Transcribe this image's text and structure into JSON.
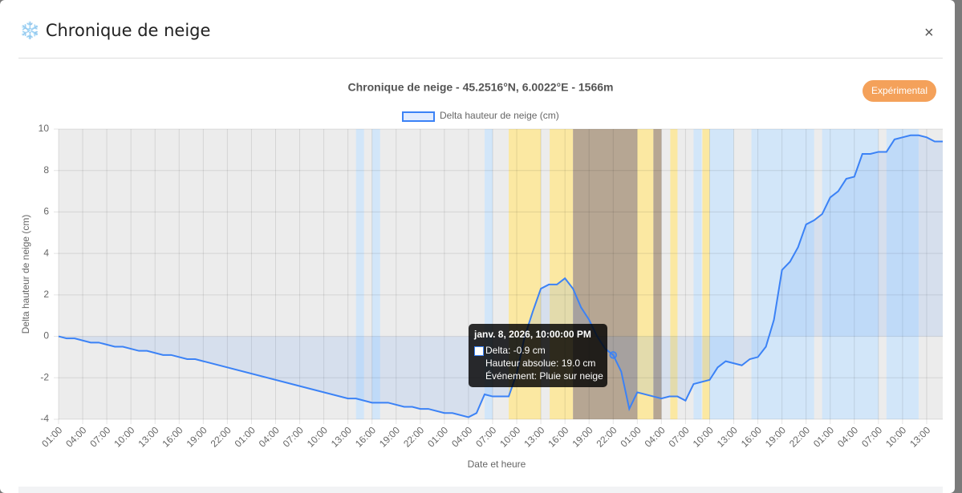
{
  "header": {
    "title": "❄️ Chronique de neige",
    "close": "×"
  },
  "badge": "Expérimental",
  "chart_data": {
    "type": "line",
    "title": "Chronique de neige - 45.2516°N, 6.0022°E - 1566m",
    "x_label": "Date et heure",
    "y_label": "Delta hauteur de neige (cm)",
    "xlim": [
      0,
      110
    ],
    "ylim": [
      -4,
      10
    ],
    "yticks": [
      -4,
      -2,
      0,
      2,
      4,
      6,
      8,
      10
    ],
    "grid": true,
    "xticks": [
      {
        "value": 0,
        "label": "01:00"
      },
      {
        "value": 3,
        "label": "04:00"
      },
      {
        "value": 6,
        "label": "07:00"
      },
      {
        "value": 9,
        "label": "10:00"
      },
      {
        "value": 12,
        "label": "13:00"
      },
      {
        "value": 15,
        "label": "16:00"
      },
      {
        "value": 18,
        "label": "19:00"
      },
      {
        "value": 21,
        "label": "22:00"
      },
      {
        "value": 24,
        "label": "01:00"
      },
      {
        "value": 27,
        "label": "04:00"
      },
      {
        "value": 30,
        "label": "07:00"
      },
      {
        "value": 33,
        "label": "10:00"
      },
      {
        "value": 36,
        "label": "13:00"
      },
      {
        "value": 39,
        "label": "16:00"
      },
      {
        "value": 42,
        "label": "19:00"
      },
      {
        "value": 45,
        "label": "22:00"
      },
      {
        "value": 48,
        "label": "01:00"
      },
      {
        "value": 51,
        "label": "04:00"
      },
      {
        "value": 54,
        "label": "07:00"
      },
      {
        "value": 57,
        "label": "10:00"
      },
      {
        "value": 60,
        "label": "13:00"
      },
      {
        "value": 63,
        "label": "16:00"
      },
      {
        "value": 66,
        "label": "19:00"
      },
      {
        "value": 69,
        "label": "22:00"
      },
      {
        "value": 72,
        "label": "01:00"
      },
      {
        "value": 75,
        "label": "04:00"
      },
      {
        "value": 78,
        "label": "07:00"
      },
      {
        "value": 81,
        "label": "10:00"
      },
      {
        "value": 84,
        "label": "13:00"
      },
      {
        "value": 87,
        "label": "16:00"
      },
      {
        "value": 90,
        "label": "19:00"
      },
      {
        "value": 93,
        "label": "22:00"
      },
      {
        "value": 96,
        "label": "01:00"
      },
      {
        "value": 99,
        "label": "04:00"
      },
      {
        "value": 102,
        "label": "07:00"
      },
      {
        "value": 105,
        "label": "10:00"
      },
      {
        "value": 108,
        "label": "13:00"
      }
    ],
    "bands": [
      {
        "from": 37,
        "to": 38,
        "color": "#cfe6fb"
      },
      {
        "from": 39,
        "to": 40,
        "color": "#cfe6fb"
      },
      {
        "from": 53,
        "to": 54,
        "color": "#cfe6fb"
      },
      {
        "from": 56,
        "to": 60,
        "color": "#fde89a"
      },
      {
        "from": 61.1,
        "to": 64,
        "color": "#fde89a"
      },
      {
        "from": 64,
        "to": 72,
        "color": "#b09e8a"
      },
      {
        "from": 72,
        "to": 74,
        "color": "#fde89a"
      },
      {
        "from": 74,
        "to": 75,
        "color": "#b09e8a"
      },
      {
        "from": 76.1,
        "to": 77,
        "color": "#fde89a"
      },
      {
        "from": 79,
        "to": 80,
        "color": "#cfe6fb"
      },
      {
        "from": 80.1,
        "to": 81,
        "color": "#fde89a"
      },
      {
        "from": 81,
        "to": 84,
        "color": "#cfe6fb"
      },
      {
        "from": 86.2,
        "to": 94,
        "color": "#cfe6fb"
      },
      {
        "from": 95,
        "to": 102,
        "color": "#cfe6fb"
      },
      {
        "from": 103,
        "to": 107,
        "color": "#cfe6fb"
      }
    ],
    "series": [
      {
        "name": "Delta hauteur de neige (cm)",
        "color": "#3b82f6",
        "x": [
          0,
          1,
          2,
          4,
          5,
          7,
          8,
          10,
          11,
          13,
          14,
          16,
          17,
          36,
          37,
          39,
          41,
          43,
          44,
          45,
          46,
          48,
          49,
          51,
          52,
          53,
          54,
          56,
          57,
          58,
          59,
          60,
          61,
          62,
          63,
          64,
          65,
          66,
          67,
          68,
          69,
          70,
          71,
          72,
          74,
          75,
          76,
          77,
          78,
          79,
          81,
          82,
          83,
          85,
          86,
          87,
          88,
          89,
          90,
          91,
          92,
          93,
          94,
          95,
          96,
          97,
          98,
          99,
          100,
          101,
          102,
          103,
          104,
          105,
          106,
          107,
          108,
          109,
          110
        ],
        "values": [
          0,
          -0.1,
          -0.1,
          -0.3,
          -0.3,
          -0.5,
          -0.5,
          -0.7,
          -0.7,
          -0.9,
          -0.9,
          -1.1,
          -1.1,
          -3.0,
          -3.0,
          -3.2,
          -3.2,
          -3.4,
          -3.4,
          -3.5,
          -3.5,
          -3.7,
          -3.7,
          -3.9,
          -3.7,
          -2.8,
          -2.9,
          -2.9,
          -1.8,
          0.0,
          1.2,
          2.3,
          2.5,
          2.5,
          2.8,
          2.3,
          1.4,
          0.8,
          0.0,
          -0.6,
          -0.9,
          -1.7,
          -3.5,
          -2.7,
          -2.9,
          -3.0,
          -2.9,
          -2.9,
          -3.1,
          -2.3,
          -2.1,
          -1.5,
          -1.2,
          -1.4,
          -1.1,
          -1.0,
          -0.5,
          0.8,
          3.2,
          3.6,
          4.3,
          5.4,
          5.6,
          5.9,
          6.7,
          7.0,
          7.6,
          7.7,
          8.8,
          8.8,
          8.9,
          8.9,
          9.5,
          9.6,
          9.7,
          9.7,
          9.6,
          9.4,
          9.4
        ]
      }
    ],
    "tooltip": {
      "title": "janv. 8, 2026, 10:00:00 PM",
      "lines": [
        "Delta: -0.9 cm",
        "Hauteur absolue: 19.0 cm",
        "Événement: Pluie sur neige"
      ]
    }
  }
}
